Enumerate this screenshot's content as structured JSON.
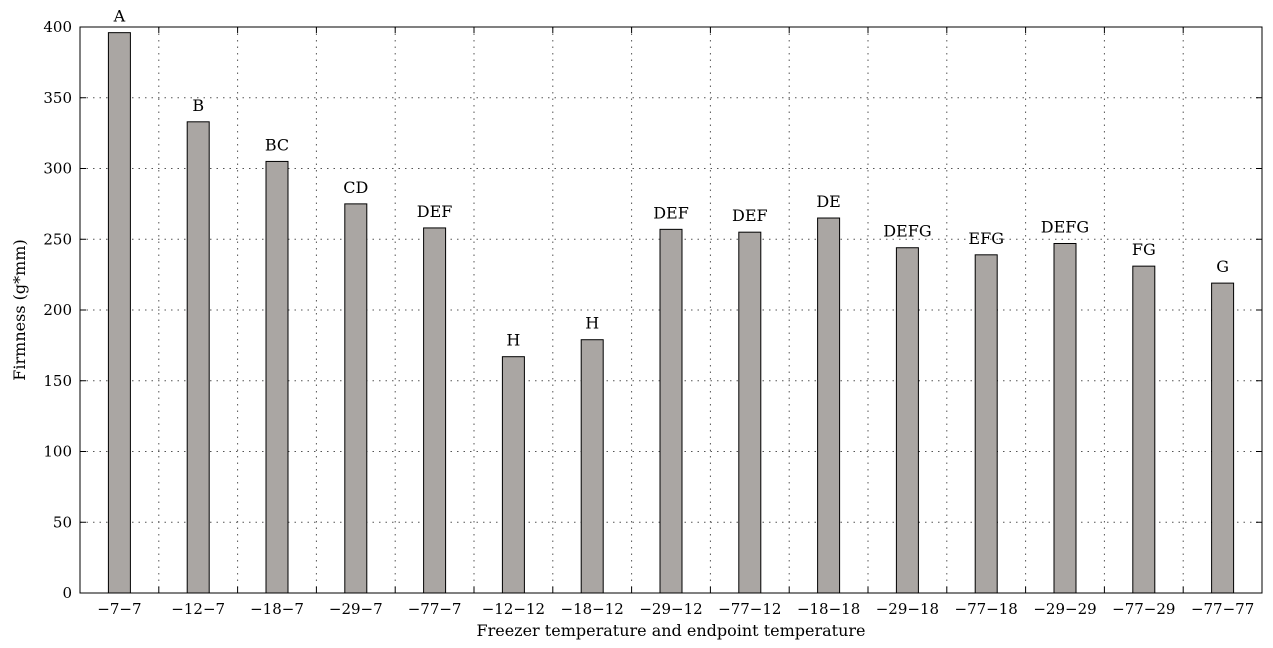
{
  "chart_data": {
    "type": "bar",
    "title": "",
    "xlabel": "Freezer temperature and endpoint temperature",
    "ylabel": "Firmness (g*mm)",
    "ylim": [
      0,
      400
    ],
    "yticks": [
      0,
      50,
      100,
      150,
      200,
      250,
      300,
      350,
      400
    ],
    "grid": true,
    "categories": [
      "−7−7",
      "−12−7",
      "−18−7",
      "−29−7",
      "−77−7",
      "−12−12",
      "−18−12",
      "−29−12",
      "−77−12",
      "−18−18",
      "−29−18",
      "−77−18",
      "−29−29",
      "−77−29",
      "−77−77"
    ],
    "values": [
      396,
      333,
      305,
      275,
      258,
      167,
      179,
      257,
      255,
      265,
      244,
      239,
      247,
      231,
      219
    ],
    "labels": [
      "A",
      "B",
      "BC",
      "CD",
      "DEF",
      "H",
      "H",
      "DEF",
      "DEF",
      "DE",
      "DEFG",
      "EFG",
      "DEFG",
      "FG",
      "G"
    ],
    "colors": {
      "bar": "#aaa6a3",
      "bar_stroke": "#000000",
      "grid": "#555555"
    }
  }
}
